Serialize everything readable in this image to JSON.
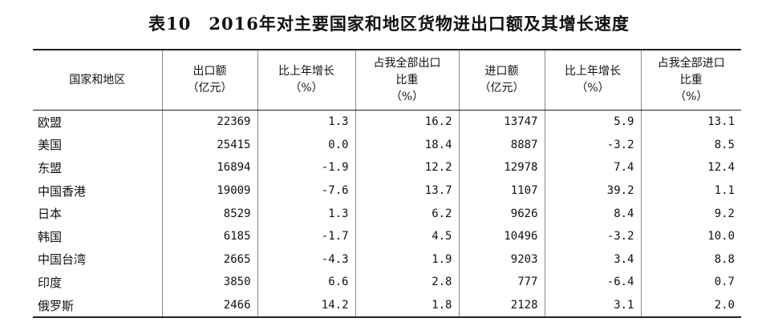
{
  "title": "表10　2016年对主要国家和地区货物进出口额及其增长速度",
  "headers": [
    [
      "国家和地区"
    ],
    [
      "出口额",
      "（亿元）"
    ],
    [
      "比上年增长",
      "（%）"
    ],
    [
      "占我全部出口",
      "比重",
      "（%）"
    ],
    [
      "进口额",
      "（亿元）"
    ],
    [
      "比上年增长",
      "（%）"
    ],
    [
      "占我全部进口",
      "比重",
      "（%）"
    ]
  ],
  "rows": [
    [
      "欧盟",
      "22369",
      "1.3",
      "16.2",
      "13747",
      "5.9",
      "13.1"
    ],
    [
      "美国",
      "25415",
      "0.0",
      "18.4",
      "8887",
      "-3.2",
      "8.5"
    ],
    [
      "东盟",
      "16894",
      "-1.9",
      "12.2",
      "12978",
      "7.4",
      "12.4"
    ],
    [
      "中国香港",
      "19009",
      "-7.6",
      "13.7",
      "1107",
      "39.2",
      "1.1"
    ],
    [
      "日本",
      "8529",
      "1.3",
      "6.2",
      "9626",
      "8.4",
      "9.2"
    ],
    [
      "韩国",
      "6185",
      "-1.7",
      "4.5",
      "10496",
      "-3.2",
      "10.0"
    ],
    [
      "中国台湾",
      "2665",
      "-4.3",
      "1.9",
      "9203",
      "3.4",
      "8.8"
    ],
    [
      "印度",
      "3850",
      "6.6",
      "2.8",
      "777",
      "-6.4",
      "0.7"
    ],
    [
      "俄罗斯",
      "2466",
      "14.2",
      "1.8",
      "2128",
      "3.1",
      "2.0"
    ]
  ]
}
